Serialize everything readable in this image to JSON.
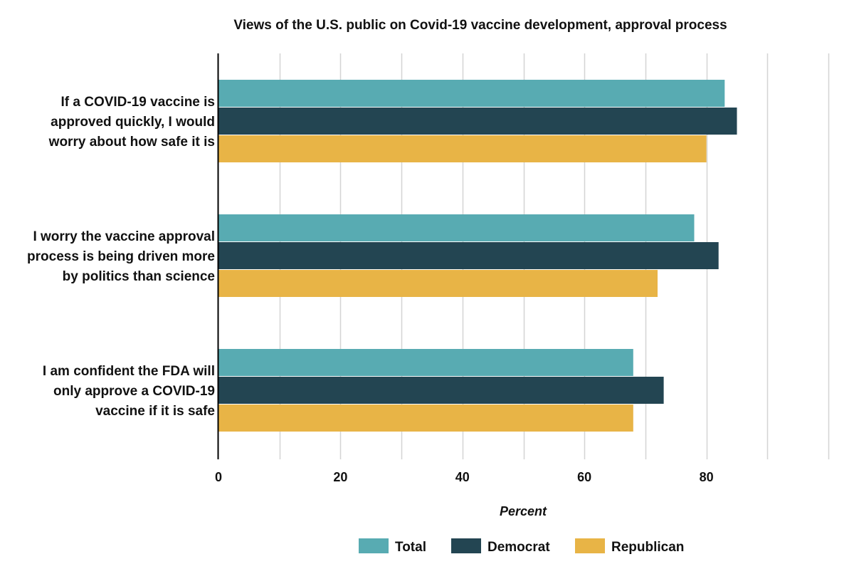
{
  "chart_data": {
    "type": "bar",
    "orientation": "horizontal",
    "title": "Views of the U.S. public on Covid-19 vaccine development, approval process",
    "xlabel": "Percent",
    "ylabel": "",
    "xlim": [
      0,
      100
    ],
    "x_ticks": [
      0,
      20,
      40,
      60,
      80
    ],
    "grid": true,
    "legend_position": "bottom",
    "categories": [
      [
        "If a COVID-19 vaccine is",
        "approved quickly, I would",
        "worry about how safe it is"
      ],
      [
        "I worry the vaccine approval",
        "process is being driven more",
        "by politics than science"
      ],
      [
        "I am confident the FDA will",
        "only approve a COVID-19",
        "vaccine if it is safe"
      ]
    ],
    "series": [
      {
        "name": "Total",
        "color": "#58abb2",
        "values": [
          83,
          78,
          68
        ]
      },
      {
        "name": "Democrat",
        "color": "#234552",
        "values": [
          85,
          82,
          73
        ]
      },
      {
        "name": "Republican",
        "color": "#e8b446",
        "values": [
          80,
          72,
          68
        ]
      }
    ]
  }
}
